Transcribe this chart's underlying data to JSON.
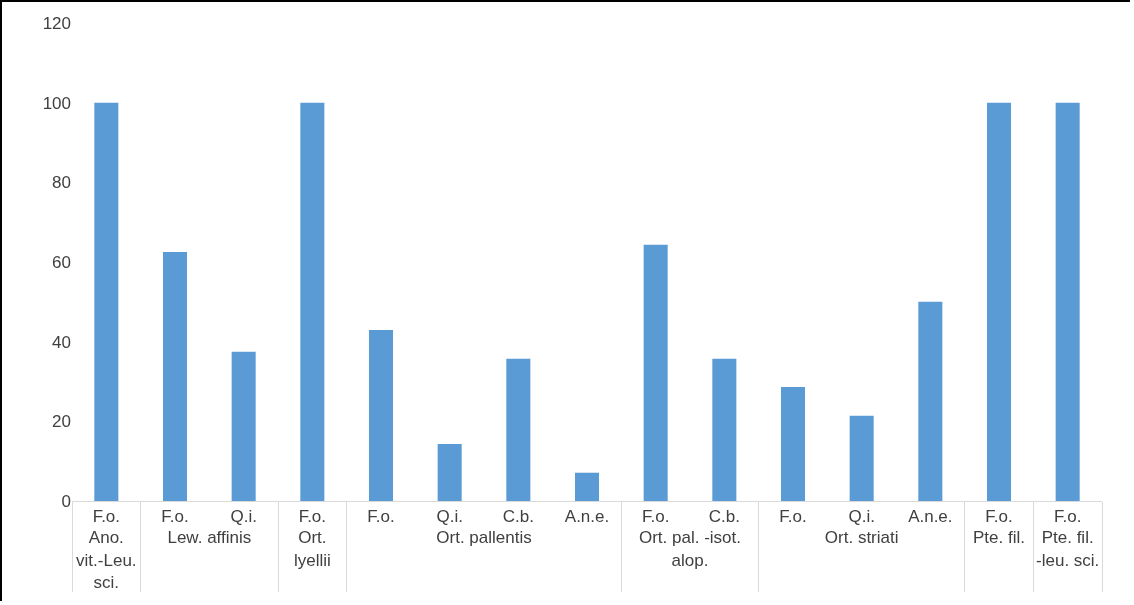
{
  "chart_data": {
    "type": "bar",
    "categories": [
      [
        "Ano. vit.-Leu. sci.",
        "F.o."
      ],
      [
        "Lew. affinis",
        "F.o."
      ],
      [
        null,
        "Q.i."
      ],
      [
        "Ort. lyellii",
        "F.o."
      ],
      [
        "Ort. pallentis",
        "F.o."
      ],
      [
        null,
        "Q.i."
      ],
      [
        null,
        "C.b."
      ],
      [
        null,
        "A.n.e."
      ],
      [
        "Ort. pal. -isot. alop.",
        "F.o."
      ],
      [
        null,
        "C.b."
      ],
      [
        "Ort. striati",
        "F.o."
      ],
      [
        null,
        "Q.i."
      ],
      [
        null,
        "A.n.e."
      ],
      [
        "Pte. fil.",
        "F.o."
      ],
      [
        "Pte. fil. -leu. sci.",
        "F.o."
      ]
    ],
    "values": [
      100,
      62.5,
      37.5,
      100,
      42.9,
      14.3,
      35.7,
      7.1,
      64.3,
      35.7,
      28.6,
      21.4,
      50,
      100,
      100
    ],
    "color": "#5b9bd5",
    "ylim": [
      0,
      120
    ],
    "yticks": [
      0,
      20,
      40,
      60,
      80,
      100,
      120
    ],
    "grid": false,
    "legend": false
  }
}
